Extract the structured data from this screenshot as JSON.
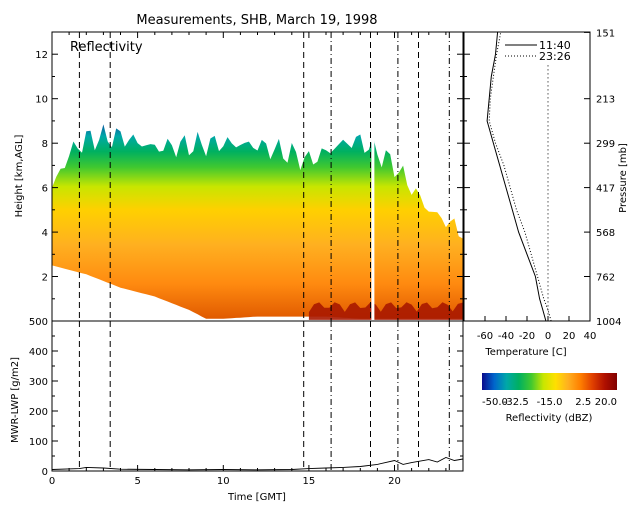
{
  "chart_data": [
    {
      "type": "heatmap",
      "title": "Measurements, SHB, March 19, 1998",
      "panel_label": "Reflectivity",
      "ylabel": "Height [km,AGL]",
      "xlim": [
        0,
        24
      ],
      "ylim": [
        0,
        13
      ],
      "yticks": [
        2,
        4,
        6,
        8,
        10,
        12
      ],
      "vertical_markers_time": [
        1.6,
        3.4,
        14.7,
        16.3,
        18.6,
        20.2,
        21.4,
        23.2
      ],
      "cloud_top_km": [
        [
          0,
          6.0
        ],
        [
          1,
          7.5
        ],
        [
          2,
          8.2
        ],
        [
          4,
          8.3
        ],
        [
          6,
          7.8
        ],
        [
          8,
          7.9
        ],
        [
          10,
          8.0
        ],
        [
          12,
          7.9
        ],
        [
          14,
          7.5
        ],
        [
          15,
          7.2
        ],
        [
          16,
          7.6
        ],
        [
          17,
          8.0
        ],
        [
          18,
          8.1
        ],
        [
          19,
          7.6
        ],
        [
          20,
          7.0
        ],
        [
          21,
          6.0
        ],
        [
          22,
          5.0
        ],
        [
          23,
          4.5
        ],
        [
          24,
          4.0
        ]
      ],
      "cloud_base_km": [
        [
          0,
          2.5
        ],
        [
          2,
          2.1
        ],
        [
          4,
          1.5
        ],
        [
          6,
          1.1
        ],
        [
          8,
          0.5
        ],
        [
          9,
          0.1
        ],
        [
          10,
          0.1
        ],
        [
          12,
          0.2
        ],
        [
          14,
          0.2
        ],
        [
          16,
          0.2
        ],
        [
          18,
          0.1
        ],
        [
          20,
          0.1
        ],
        [
          22,
          0.1
        ],
        [
          24,
          0.1
        ]
      ]
    },
    {
      "type": "line",
      "title": "",
      "xlabel": "Temperature [C]",
      "ylabel": "Pressure [mb]",
      "xlim": [
        -80,
        40
      ],
      "xticks": [
        -60,
        -40,
        -20,
        0,
        20,
        40
      ],
      "ylim_km": [
        0,
        13
      ],
      "pressure_ticks": [
        {
          "km": 0,
          "label": "1004"
        },
        {
          "km": 2,
          "label": "762"
        },
        {
          "km": 4,
          "label": "568"
        },
        {
          "km": 6,
          "label": "417"
        },
        {
          "km": 8,
          "label": "299"
        },
        {
          "km": 10,
          "label": "213"
        },
        {
          "km": 12.98,
          "label": "151"
        }
      ],
      "series": [
        {
          "name": "11:40",
          "style": "solid",
          "points": [
            [
              -2,
              0
            ],
            [
              -5,
              0.5
            ],
            [
              -8,
              1.0
            ],
            [
              -12,
              2.0
            ],
            [
              -20,
              3.0
            ],
            [
              -28,
              4.0
            ],
            [
              -34,
              5.0
            ],
            [
              -40,
              6.0
            ],
            [
              -46,
              7.0
            ],
            [
              -52,
              8.0
            ],
            [
              -58,
              9.0
            ],
            [
              -56,
              10.0
            ],
            [
              -54,
              11.0
            ],
            [
              -50,
              12.0
            ],
            [
              -48,
              13.0
            ]
          ]
        },
        {
          "name": "23:26",
          "style": "dotted",
          "points": [
            [
              3,
              0
            ],
            [
              0,
              0.5
            ],
            [
              -4,
              1.0
            ],
            [
              -10,
              2.0
            ],
            [
              -16,
              3.0
            ],
            [
              -22,
              4.0
            ],
            [
              -30,
              5.0
            ],
            [
              -36,
              6.0
            ],
            [
              -42,
              7.0
            ],
            [
              -50,
              8.0
            ],
            [
              -56,
              9.0
            ],
            [
              -55,
              10.0
            ],
            [
              -52,
              11.0
            ],
            [
              -49,
              12.0
            ],
            [
              -45,
              13.0
            ]
          ]
        }
      ],
      "zero_reference_C": 0
    },
    {
      "type": "line",
      "title": "",
      "xlabel": "Time [GMT]",
      "ylabel": "MWR-LWP [g/m2]",
      "xlim": [
        0,
        24
      ],
      "ylim": [
        0,
        500
      ],
      "xticks": [
        0,
        5,
        10,
        15,
        20
      ],
      "yticks": [
        0,
        100,
        200,
        300,
        400,
        500
      ],
      "series": [
        {
          "name": "",
          "points": [
            [
              0,
              5
            ],
            [
              1.6,
              8
            ],
            [
              2,
              12
            ],
            [
              3,
              10
            ],
            [
              4,
              6
            ],
            [
              6,
              5
            ],
            [
              8,
              4
            ],
            [
              10,
              5
            ],
            [
              12,
              4
            ],
            [
              14,
              5
            ],
            [
              15,
              8
            ],
            [
              16,
              10
            ],
            [
              17,
              12
            ],
            [
              18,
              15
            ],
            [
              19,
              22
            ],
            [
              20,
              35
            ],
            [
              20.5,
              22
            ],
            [
              21,
              28
            ],
            [
              22,
              38
            ],
            [
              22.5,
              30
            ],
            [
              23,
              45
            ],
            [
              23.5,
              35
            ],
            [
              24,
              40
            ]
          ]
        }
      ]
    },
    {
      "type": "colorbar",
      "label": "Reflectivity (dBZ)",
      "range": [
        -50,
        20
      ],
      "ticks": [
        {
          "value": -50.0,
          "label": "-50.0"
        },
        {
          "value": -32.5,
          "label": "-32.5"
        },
        {
          "value": -15.0,
          "label": "-15.0"
        },
        {
          "value": 2.5,
          "label": "2.5"
        },
        {
          "value": 20.0,
          "label": "20.0"
        }
      ],
      "colors": [
        "#0a0a8c",
        "#0066cc",
        "#00a8a8",
        "#00b060",
        "#40c830",
        "#c8e600",
        "#ffe000",
        "#ffb020",
        "#ff8000",
        "#e04000",
        "#b01000",
        "#800000"
      ]
    }
  ]
}
